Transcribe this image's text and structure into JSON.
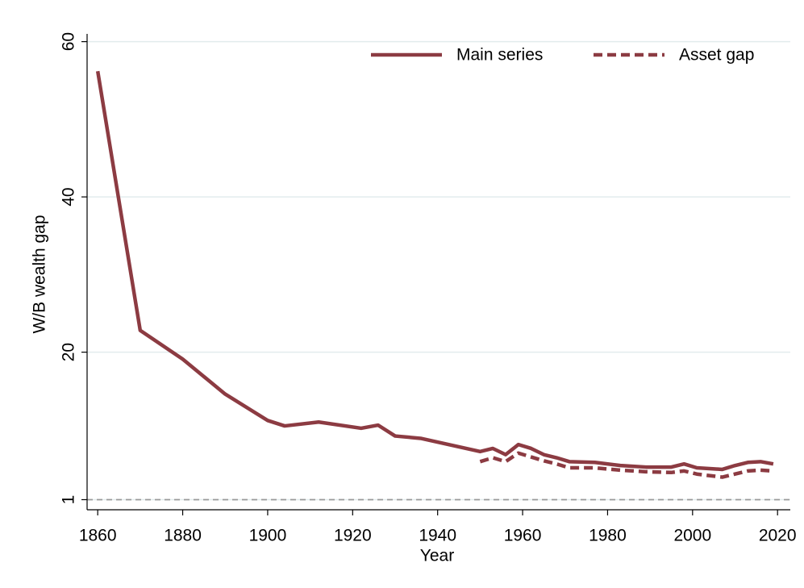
{
  "chart_data": {
    "type": "line",
    "x": [
      1860,
      1870,
      1880,
      1890,
      1900,
      1904,
      1912,
      1922,
      1926,
      1930,
      1936,
      1950,
      1953,
      1956,
      1959,
      1962,
      1965,
      1968,
      1971,
      1977,
      1983,
      1989,
      1995,
      1998,
      2001,
      2007,
      2010,
      2013,
      2016,
      2019
    ],
    "series": [
      {
        "name": "Main series",
        "color": "#8c3b42",
        "dash": false,
        "values": [
          56.2,
          22.8,
          19.1,
          14.6,
          11.2,
          10.5,
          11.0,
          10.2,
          10.6,
          9.2,
          8.9,
          7.2,
          7.6,
          6.8,
          8.1,
          7.6,
          6.8,
          6.4,
          5.9,
          5.8,
          5.4,
          5.2,
          5.2,
          5.6,
          5.1,
          4.9,
          5.4,
          5.8,
          5.9,
          5.6
        ]
      },
      {
        "name": "Asset gap",
        "color": "#8c3b42",
        "dash": true,
        "values": [
          null,
          null,
          null,
          null,
          null,
          null,
          null,
          null,
          null,
          null,
          null,
          5.9,
          6.4,
          5.9,
          7.0,
          6.5,
          6.0,
          5.6,
          5.1,
          5.1,
          4.8,
          4.6,
          4.5,
          4.7,
          4.3,
          3.9,
          4.3,
          4.7,
          4.8,
          4.7
        ]
      }
    ],
    "xlabel": "Year",
    "ylabel": "W/B wealth gap",
    "xlim": [
      1857.5,
      2023
    ],
    "ylim": [
      -0.3,
      61
    ],
    "xticks": [
      1860,
      1880,
      1900,
      1920,
      1940,
      1960,
      1980,
      2000,
      2020
    ],
    "yticks": [
      1,
      20,
      40,
      60
    ],
    "reference_line": 1,
    "grid": true,
    "legend": "top-right"
  }
}
